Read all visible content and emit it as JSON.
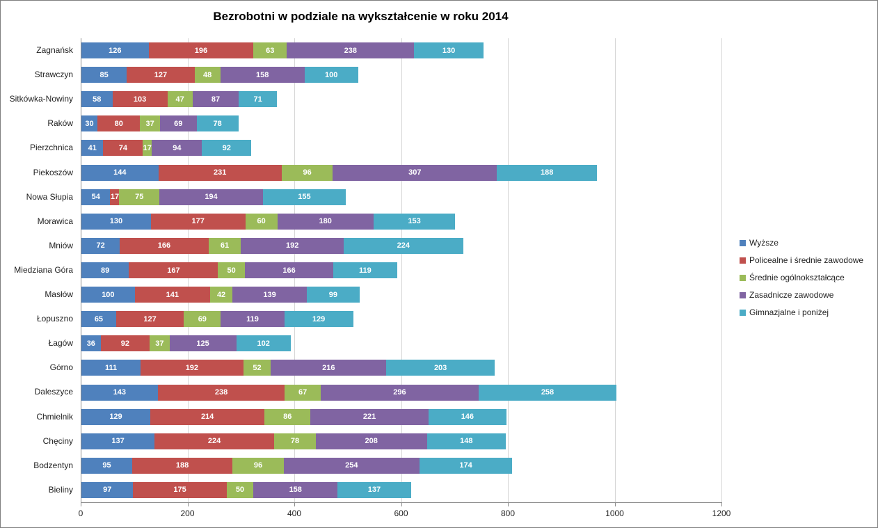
{
  "chart_data": {
    "type": "bar",
    "orientation": "horizontal",
    "stacked": true,
    "title": "Bezrobotni w podziale na wykształcenie w roku 2014",
    "categories": [
      "Zagnańsk",
      "Strawczyn",
      "Sitkówka-Nowiny",
      "Raków",
      "Pierzchnica",
      "Piekoszów",
      "Nowa Słupia",
      "Morawica",
      "Mniów",
      "Miedziana Góra",
      "Masłów",
      "Łopuszno",
      "Łagów",
      "Górno",
      "Daleszyce",
      "Chmielnik",
      "Chęciny",
      "Bodzentyn",
      "Bieliny"
    ],
    "series": [
      {
        "name": "Wyższe",
        "color": "#4F81BD",
        "values": [
          126,
          85,
          58,
          30,
          41,
          144,
          54,
          130,
          72,
          89,
          100,
          65,
          36,
          111,
          143,
          129,
          137,
          95,
          97
        ]
      },
      {
        "name": "Policealne i średnie zawodowe",
        "color": "#C0504D",
        "values": [
          196,
          127,
          103,
          80,
          74,
          231,
          17,
          177,
          166,
          167,
          141,
          127,
          92,
          192,
          238,
          214,
          224,
          188,
          175
        ]
      },
      {
        "name": "Średnie ogólnokształcące",
        "color": "#9BBB59",
        "values": [
          63,
          48,
          47,
          37,
          17,
          96,
          75,
          60,
          61,
          50,
          42,
          69,
          37,
          52,
          67,
          86,
          78,
          96,
          50
        ]
      },
      {
        "name": "Zasadnicze zawodowe",
        "color": "#8064A2",
        "values": [
          238,
          158,
          87,
          69,
          94,
          307,
          194,
          180,
          192,
          166,
          139,
          119,
          125,
          216,
          296,
          221,
          208,
          254,
          158
        ]
      },
      {
        "name": "Gimnazjalne i poniżej",
        "color": "#4BACC6",
        "values": [
          130,
          100,
          71,
          78,
          92,
          188,
          155,
          153,
          224,
          119,
          99,
          129,
          102,
          203,
          258,
          146,
          148,
          174,
          137
        ]
      }
    ],
    "xlim": [
      0,
      1200
    ],
    "x_ticks": [
      "0",
      "200",
      "400",
      "600",
      "800",
      "1000",
      "1200"
    ],
    "grid": "vertical",
    "legend_position": "right",
    "data_labels": "inside-center-white"
  },
  "style": {
    "grid_color": "#d6d6d6",
    "axis_color": "#8c8c8c",
    "frame_border_color": "#7f7f7f",
    "data_label_color": "#ffffff",
    "text_color": "#1f1f1f",
    "background": "#ffffff"
  }
}
